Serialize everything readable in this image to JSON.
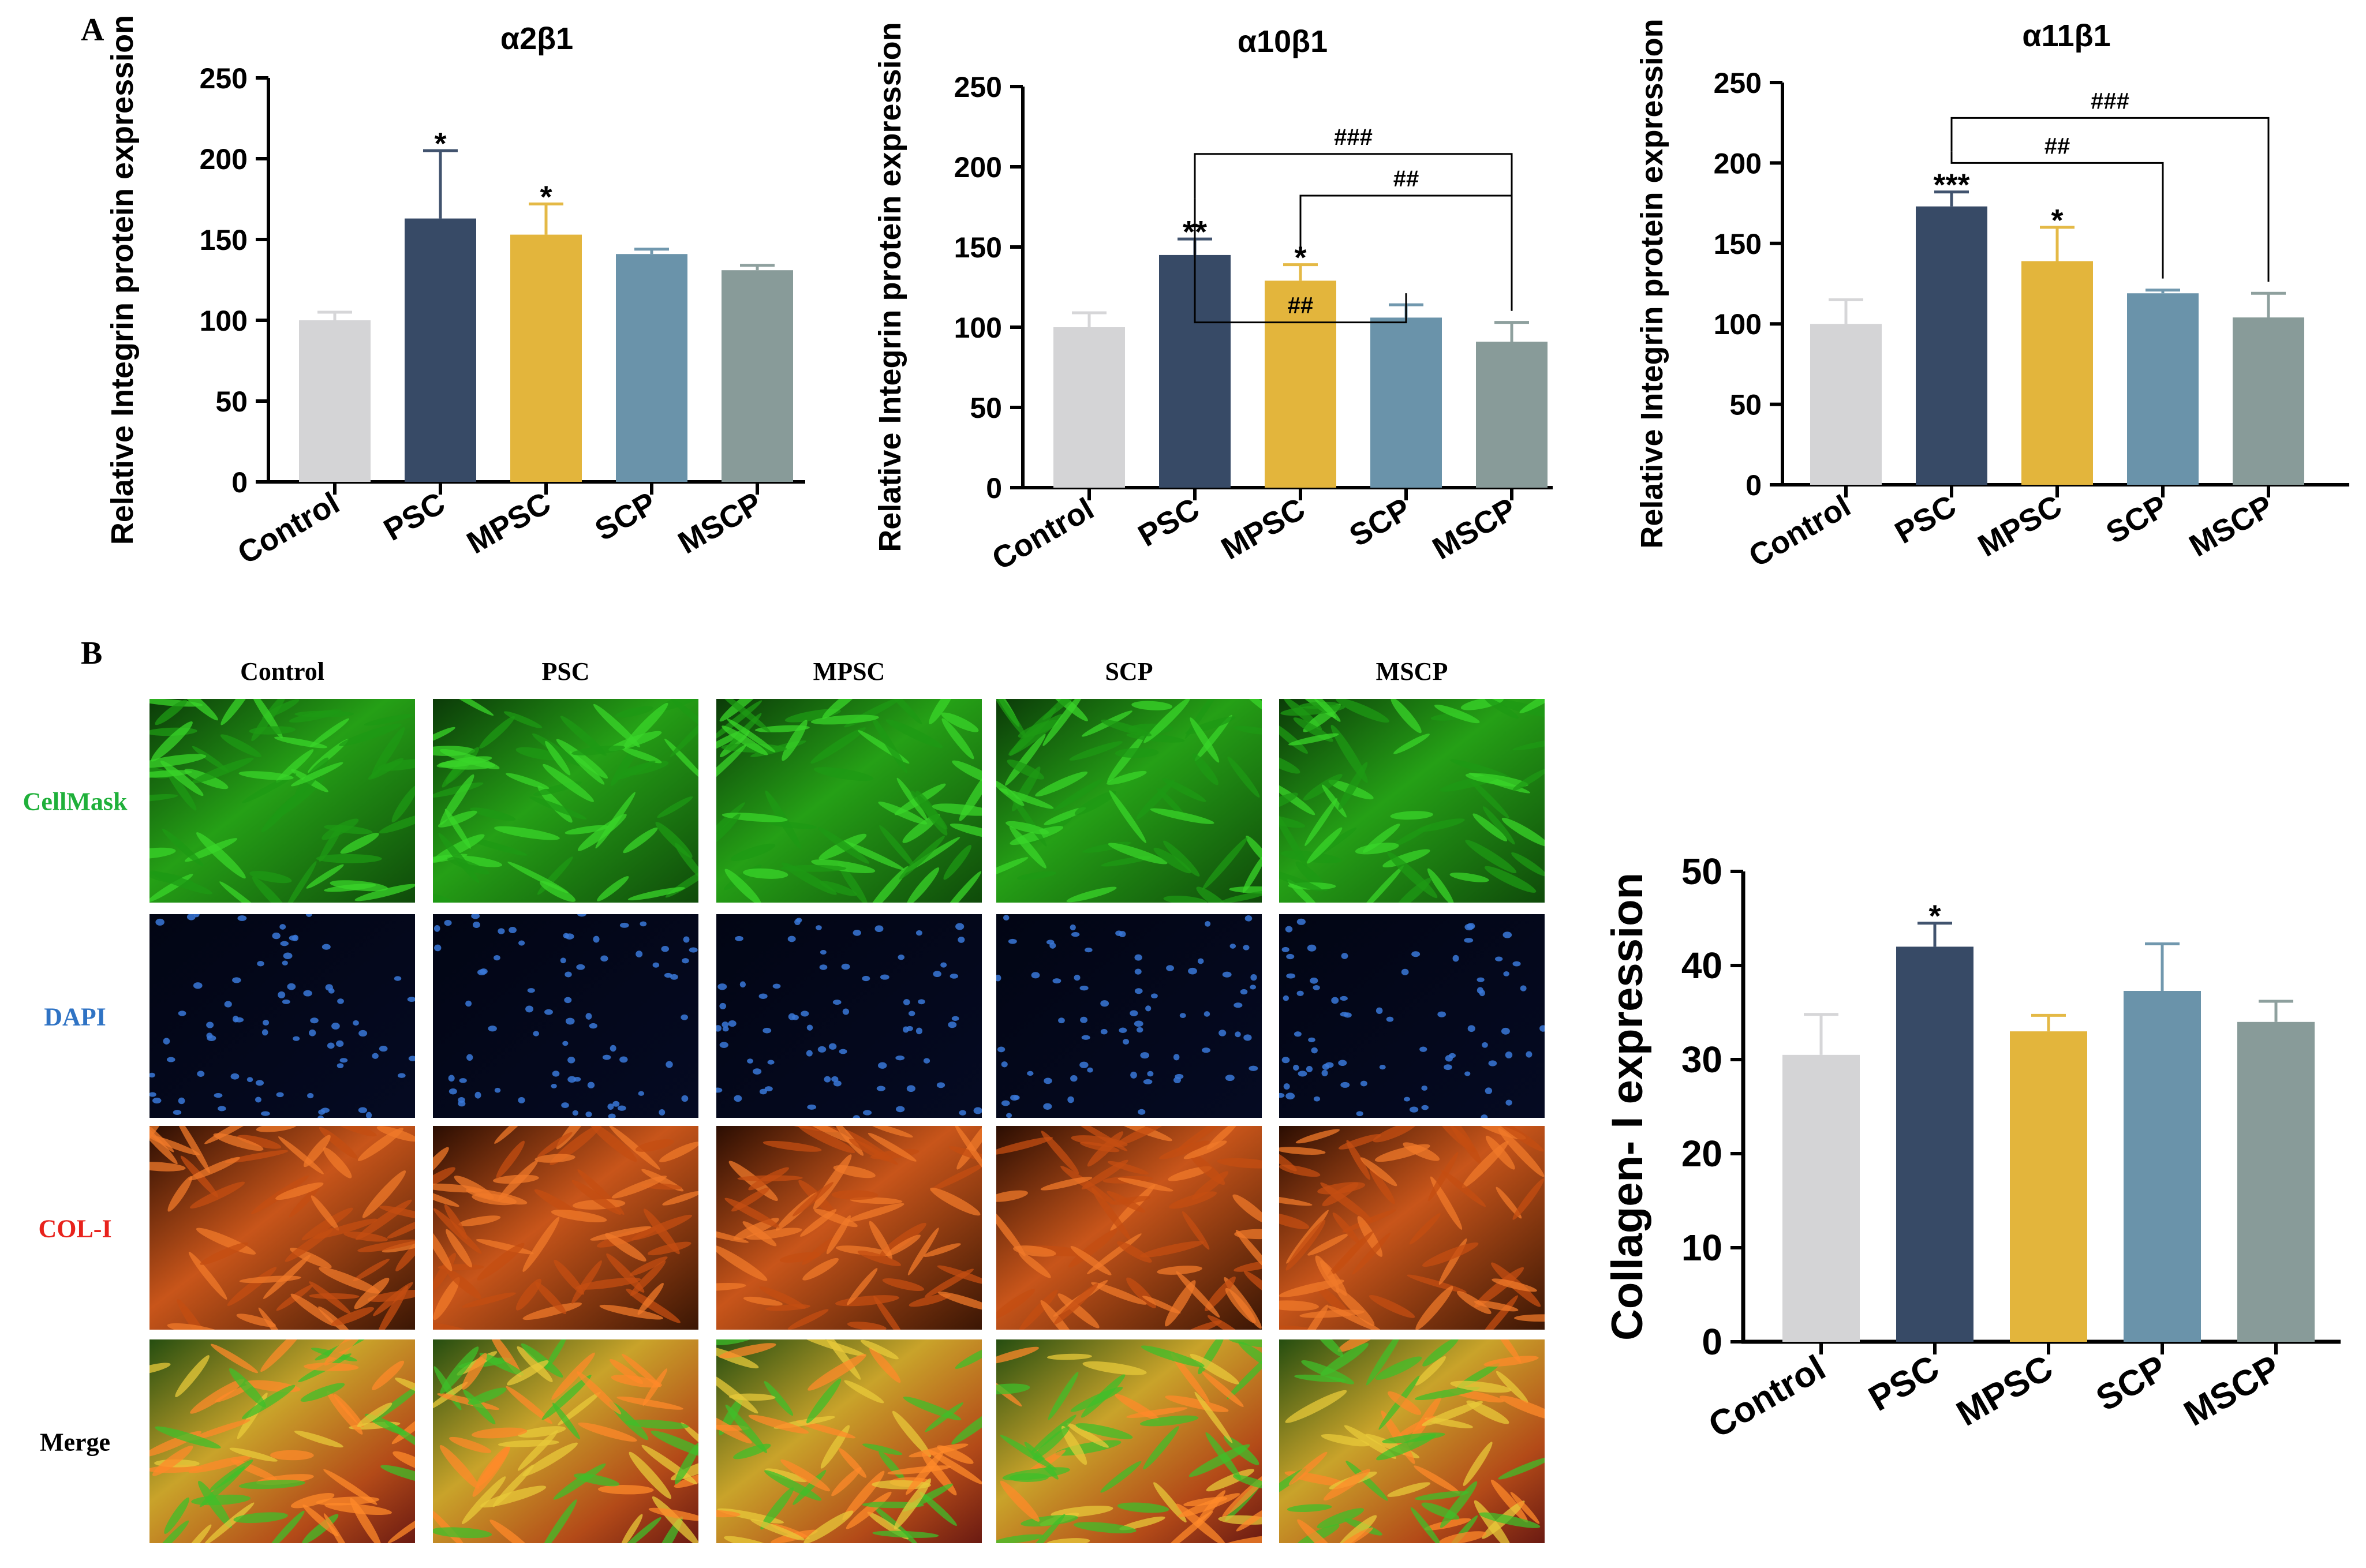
{
  "panels": {
    "a_label": "A",
    "b_label": "B"
  },
  "colors": {
    "Control": "#d4d4d6",
    "PSC": "#374a66",
    "MPSC": "#e3b53c",
    "SCP": "#6a93aa",
    "MSCP": "#889b99"
  },
  "chart_data": [
    {
      "type": "bar",
      "title": "α2β1",
      "ylabel": "Relative Integrin protein expression",
      "categories": [
        "Control",
        "PSC",
        "MPSC",
        "SCP",
        "MSCP"
      ],
      "values": [
        100,
        163,
        153,
        141,
        131
      ],
      "errors": [
        5,
        42,
        19,
        3,
        3
      ],
      "significance": [
        "",
        "*",
        "*",
        "",
        ""
      ],
      "ylim": [
        0,
        250
      ],
      "yticks": [
        "0",
        "50",
        "100",
        "150",
        "200",
        "250"
      ],
      "brackets": []
    },
    {
      "type": "bar",
      "title": "α10β1",
      "ylabel": "Relative Integrin protein expression",
      "categories": [
        "Control",
        "PSC",
        "MPSC",
        "SCP",
        "MSCP"
      ],
      "values": [
        100,
        145,
        129,
        106,
        91
      ],
      "errors": [
        9,
        10,
        10,
        8,
        12
      ],
      "significance": [
        "",
        "**",
        "*",
        "",
        ""
      ],
      "ylim": [
        0,
        250
      ],
      "yticks": [
        "0",
        "50",
        "100",
        "150",
        "200",
        "250"
      ],
      "brackets": [
        {
          "from": 1,
          "to": 3,
          "label": "##"
        },
        {
          "from": 2,
          "to": 4,
          "label": "##"
        },
        {
          "from": 1,
          "to": 4,
          "label": "###"
        }
      ]
    },
    {
      "type": "bar",
      "title": "α11β1",
      "ylabel": "Relative Integrin protein expression",
      "categories": [
        "Control",
        "PSC",
        "MPSC",
        "SCP",
        "MSCP"
      ],
      "values": [
        100,
        173,
        139,
        119,
        104
      ],
      "errors": [
        15,
        9,
        21,
        2,
        15
      ],
      "significance": [
        "",
        "***",
        "*",
        "",
        ""
      ],
      "ylim": [
        0,
        250
      ],
      "yticks": [
        "0",
        "50",
        "100",
        "150",
        "200",
        "250"
      ],
      "brackets": [
        {
          "from": 1,
          "to": 3,
          "label": "##"
        },
        {
          "from": 1,
          "to": 4,
          "label": "###"
        }
      ]
    },
    {
      "type": "bar",
      "title": "",
      "ylabel": "Collagen- I expression",
      "categories": [
        "Control",
        "PSC",
        "MPSC",
        "SCP",
        "MSCP"
      ],
      "values": [
        30.5,
        42,
        33,
        37.3,
        34
      ],
      "errors": [
        4.3,
        2.5,
        1.7,
        5.0,
        2.2
      ],
      "significance": [
        "",
        "*",
        "",
        "",
        ""
      ],
      "ylim": [
        0,
        50
      ],
      "yticks": [
        "0",
        "10",
        "20",
        "30",
        "40",
        "50"
      ],
      "brackets": []
    }
  ],
  "micrographs": {
    "columns": [
      "Control",
      "PSC",
      "MPSC",
      "SCP",
      "MSCP"
    ],
    "rows": [
      {
        "label": "CellMask",
        "color": "#1fb03a"
      },
      {
        "label": "DAPI",
        "color": "#2f73c4"
      },
      {
        "label": "COL-I",
        "color": "#e8221c"
      },
      {
        "label": "Merge",
        "color": "#000000"
      }
    ]
  }
}
